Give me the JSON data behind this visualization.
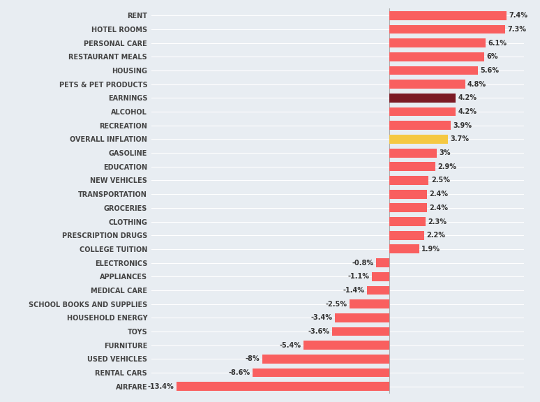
{
  "categories": [
    "AIRFARE",
    "RENTAL CARS",
    "USED VEHICLES",
    "FURNITURE",
    "TOYS",
    "HOUSEHOLD ENERGY",
    "SCHOOL BOOKS AND SUPPLIES",
    "MEDICAL CARE",
    "APPLIANCES",
    "ELECTRONICS",
    "COLLEGE TUITION",
    "PRESCRIPTION DRUGS",
    "CLOTHING",
    "GROCERIES",
    "TRANSPORTATION",
    "NEW VEHICLES",
    "EDUCATION",
    "GASOLINE",
    "OVERALL INFLATION",
    "RECREATION",
    "ALCOHOL",
    "EARNINGS",
    "PETS & PET PRODUCTS",
    "HOUSING",
    "RESTAURANT MEALS",
    "PERSONAL CARE",
    "HOTEL ROOMS",
    "RENT"
  ],
  "values": [
    -13.4,
    -8.6,
    -8.0,
    -5.4,
    -3.6,
    -3.4,
    -2.5,
    -1.4,
    -1.1,
    -0.8,
    1.9,
    2.2,
    2.3,
    2.4,
    2.4,
    2.5,
    2.9,
    3.0,
    3.7,
    3.9,
    4.2,
    4.2,
    4.8,
    5.6,
    6.0,
    6.1,
    7.3,
    7.4
  ],
  "bar_colors": [
    "#f95f5f",
    "#f95f5f",
    "#f95f5f",
    "#f95f5f",
    "#f95f5f",
    "#f95f5f",
    "#f95f5f",
    "#f95f5f",
    "#f95f5f",
    "#f95f5f",
    "#f95f5f",
    "#f95f5f",
    "#f95f5f",
    "#f95f5f",
    "#f95f5f",
    "#f95f5f",
    "#f95f5f",
    "#f95f5f",
    "#f5c842",
    "#f95f5f",
    "#f95f5f",
    "#7b1a24",
    "#f95f5f",
    "#f95f5f",
    "#f95f5f",
    "#f95f5f",
    "#f95f5f",
    "#f95f5f"
  ],
  "background_color": "#e8edf2",
  "label_color": "#444444",
  "value_label_color": "#333333",
  "xlim": [
    -15,
    8.5
  ],
  "bar_height": 0.65,
  "label_fontsize": 7.0,
  "value_fontsize": 7.0,
  "grid_color": "#ffffff",
  "zero_line_color": "#aaaaaa"
}
